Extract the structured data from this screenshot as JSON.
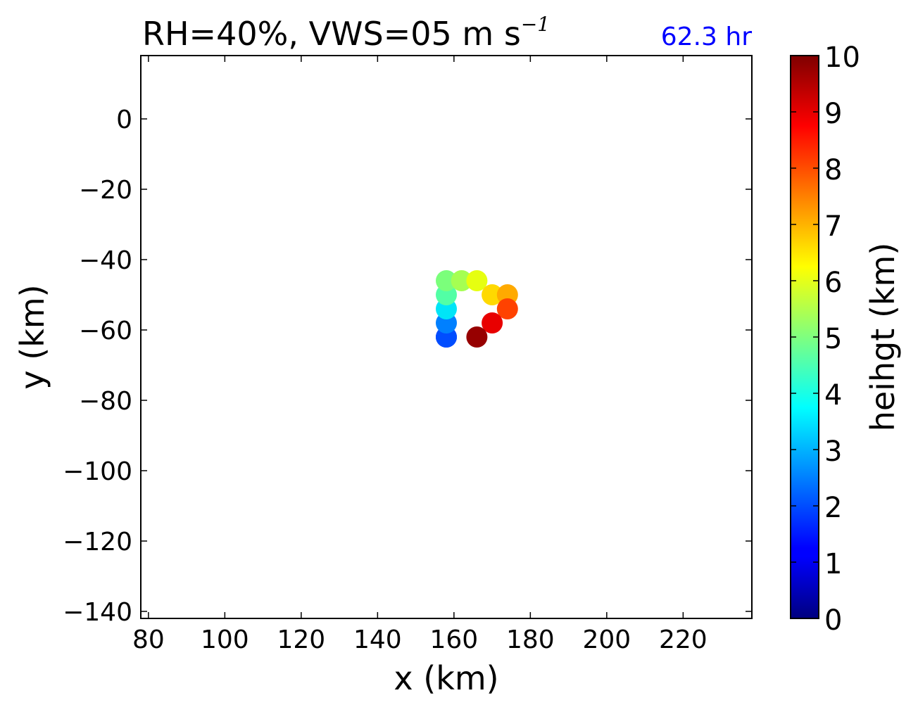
{
  "chart_data": {
    "type": "scatter",
    "title": "RH=40%, VWS=05 m s",
    "title_superscript": "−1",
    "annotation": "62.3 hr",
    "annotation_color": "#0000ff",
    "xlabel": "x (km)",
    "ylabel": "y (km)",
    "xlim": [
      78,
      238
    ],
    "ylim": [
      -142,
      18
    ],
    "xticks": [
      80,
      100,
      120,
      140,
      160,
      180,
      200,
      220
    ],
    "yticks": [
      0,
      -20,
      -40,
      -60,
      -80,
      -100,
      -120,
      -140
    ],
    "grid": false,
    "colorbar": {
      "label": "heihgt (km)",
      "colormap": "jet",
      "range": [
        0,
        10
      ],
      "ticks": [
        0,
        1,
        2,
        3,
        4,
        5,
        6,
        7,
        8,
        9,
        10
      ]
    },
    "points": [
      {
        "x": 158,
        "y": -62,
        "height": 1.5
      },
      {
        "x": 158,
        "y": -62,
        "height": 2.0
      },
      {
        "x": 158,
        "y": -58,
        "height": 2.5
      },
      {
        "x": 158,
        "y": -54,
        "height": 3.5
      },
      {
        "x": 158,
        "y": -50,
        "height": 4.5
      },
      {
        "x": 158,
        "y": -46,
        "height": 5.0
      },
      {
        "x": 162,
        "y": -46,
        "height": 5.5
      },
      {
        "x": 166,
        "y": -46,
        "height": 6.3
      },
      {
        "x": 170,
        "y": -50,
        "height": 6.8
      },
      {
        "x": 174,
        "y": -50,
        "height": 7.3
      },
      {
        "x": 174,
        "y": -54,
        "height": 8.4
      },
      {
        "x": 170,
        "y": -58,
        "height": 9.1
      },
      {
        "x": 166,
        "y": -62,
        "height": 9.8
      }
    ]
  }
}
